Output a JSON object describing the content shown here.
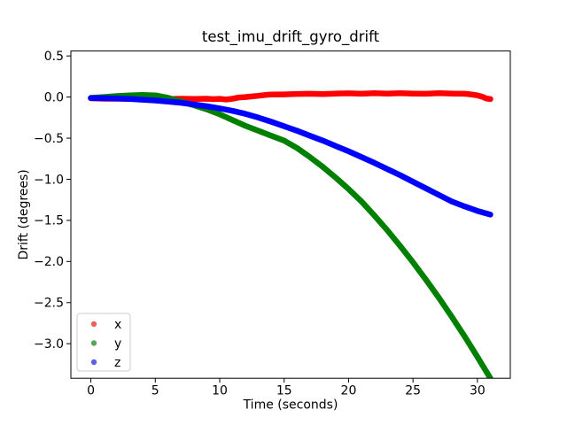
{
  "chart_data": {
    "type": "scatter",
    "title": "test_imu_drift_gyro_drift",
    "xlabel": "Time (seconds)",
    "ylabel": "Drift (degrees)",
    "xlim": [
      -1.55,
      32.55
    ],
    "ylim": [
      -3.42,
      0.56
    ],
    "xticks": [
      0,
      5,
      10,
      15,
      20,
      25,
      30
    ],
    "yticks": [
      0.5,
      0.0,
      -0.5,
      -1.0,
      -1.5,
      -2.0,
      -2.5,
      -3.0
    ],
    "grid": false,
    "background": "#ffffff",
    "spine_color": "#000000",
    "legend": {
      "location": "lower left",
      "border_color": "#cccccc",
      "background": "#ffffff",
      "labels": [
        "x",
        "y",
        "z"
      ]
    },
    "series": [
      {
        "name": "x",
        "label": "x",
        "color": "#ff0000",
        "legend_marker_color": "#e8625d",
        "points": [
          [
            0,
            -0.015
          ],
          [
            1,
            -0.02
          ],
          [
            2,
            -0.02
          ],
          [
            3,
            -0.022
          ],
          [
            4,
            -0.018
          ],
          [
            5,
            -0.022
          ],
          [
            6,
            -0.025
          ],
          [
            7,
            -0.02
          ],
          [
            8,
            -0.024
          ],
          [
            9,
            -0.02
          ],
          [
            9.5,
            -0.026
          ],
          [
            10,
            -0.022
          ],
          [
            10.5,
            -0.03
          ],
          [
            11,
            -0.02
          ],
          [
            11.5,
            -0.005
          ],
          [
            12,
            0.0
          ],
          [
            12.5,
            0.008
          ],
          [
            13,
            0.015
          ],
          [
            13.5,
            0.025
          ],
          [
            14,
            0.03
          ],
          [
            15,
            0.032
          ],
          [
            16,
            0.038
          ],
          [
            17,
            0.04
          ],
          [
            18,
            0.036
          ],
          [
            19,
            0.042
          ],
          [
            20,
            0.045
          ],
          [
            21,
            0.04
          ],
          [
            22,
            0.046
          ],
          [
            23,
            0.042
          ],
          [
            24,
            0.046
          ],
          [
            25,
            0.042
          ],
          [
            26,
            0.04
          ],
          [
            27,
            0.046
          ],
          [
            28,
            0.042
          ],
          [
            29,
            0.04
          ],
          [
            29.5,
            0.032
          ],
          [
            30,
            0.02
          ],
          [
            30.4,
            0.002
          ],
          [
            30.7,
            -0.018
          ],
          [
            31,
            -0.025
          ]
        ]
      },
      {
        "name": "y",
        "label": "y",
        "color": "#008000",
        "legend_marker_color": "#58a45b",
        "points": [
          [
            0,
            -0.01
          ],
          [
            1,
            0.0
          ],
          [
            2,
            0.012
          ],
          [
            3,
            0.02
          ],
          [
            4,
            0.025
          ],
          [
            5,
            0.02
          ],
          [
            6,
            -0.01
          ],
          [
            7,
            -0.055
          ],
          [
            8,
            -0.1
          ],
          [
            9,
            -0.15
          ],
          [
            10,
            -0.21
          ],
          [
            11,
            -0.28
          ],
          [
            12,
            -0.35
          ],
          [
            13,
            -0.41
          ],
          [
            14,
            -0.47
          ],
          [
            15,
            -0.53
          ],
          [
            16,
            -0.62
          ],
          [
            17,
            -0.73
          ],
          [
            18,
            -0.85
          ],
          [
            19,
            -0.98
          ],
          [
            20,
            -1.12
          ],
          [
            21,
            -1.27
          ],
          [
            22,
            -1.44
          ],
          [
            23,
            -1.62
          ],
          [
            24,
            -1.81
          ],
          [
            25,
            -2.01
          ],
          [
            26,
            -2.22
          ],
          [
            27,
            -2.44
          ],
          [
            28,
            -2.67
          ],
          [
            29,
            -2.91
          ],
          [
            30,
            -3.16
          ],
          [
            31,
            -3.42
          ]
        ]
      },
      {
        "name": "z",
        "label": "z",
        "color": "#0000ff",
        "legend_marker_color": "#5f5fe8",
        "points": [
          [
            0,
            -0.012
          ],
          [
            1,
            -0.014
          ],
          [
            2,
            -0.018
          ],
          [
            3,
            -0.024
          ],
          [
            4,
            -0.032
          ],
          [
            5,
            -0.042
          ],
          [
            6,
            -0.055
          ],
          [
            7,
            -0.07
          ],
          [
            8,
            -0.09
          ],
          [
            9,
            -0.112
          ],
          [
            10,
            -0.138
          ],
          [
            11,
            -0.168
          ],
          [
            12,
            -0.205
          ],
          [
            13,
            -0.25
          ],
          [
            14,
            -0.3
          ],
          [
            15,
            -0.355
          ],
          [
            16,
            -0.41
          ],
          [
            17,
            -0.47
          ],
          [
            18,
            -0.53
          ],
          [
            19,
            -0.595
          ],
          [
            20,
            -0.66
          ],
          [
            21,
            -0.73
          ],
          [
            22,
            -0.8
          ],
          [
            23,
            -0.875
          ],
          [
            24,
            -0.95
          ],
          [
            25,
            -1.03
          ],
          [
            26,
            -1.11
          ],
          [
            27,
            -1.19
          ],
          [
            28,
            -1.27
          ],
          [
            29,
            -1.33
          ],
          [
            30,
            -1.385
          ],
          [
            31,
            -1.43
          ]
        ]
      }
    ]
  }
}
